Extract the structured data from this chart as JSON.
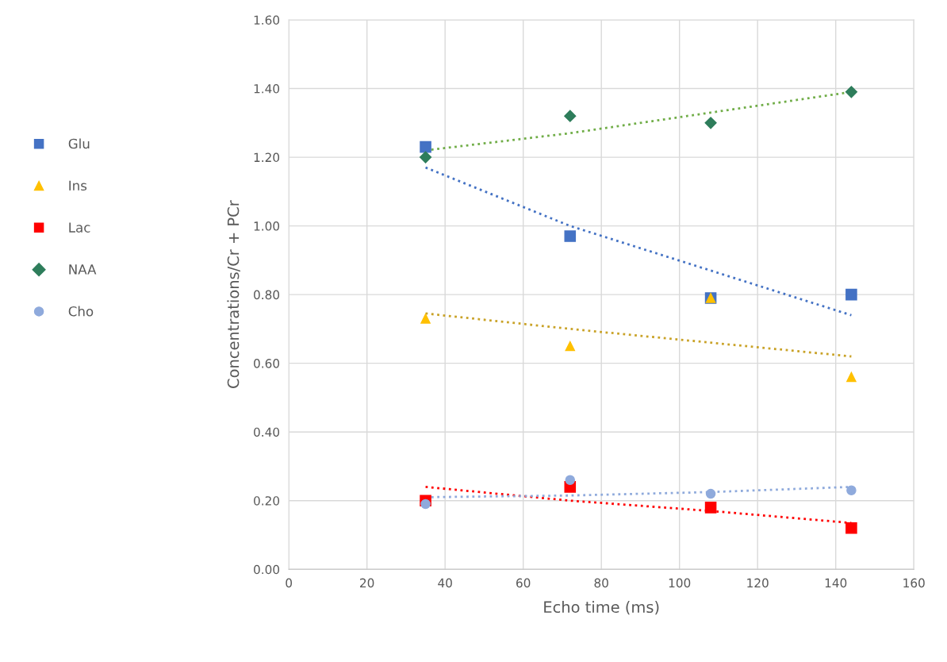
{
  "chart_data": {
    "type": "scatter",
    "xlabel": "Echo time (ms)",
    "ylabel": "Concentrations/Cr + PCr",
    "x": [
      35,
      72,
      108,
      144
    ],
    "series": [
      {
        "name": "Glu",
        "color": "#4472c4",
        "marker": "square",
        "values": [
          1.23,
          0.97,
          0.79,
          0.8
        ]
      },
      {
        "name": "Ins",
        "color": "#ffc000",
        "marker": "triangle",
        "values": [
          0.73,
          0.65,
          0.79,
          0.56
        ]
      },
      {
        "name": "Lac",
        "color": "#ff0000",
        "marker": "square",
        "values": [
          0.2,
          0.24,
          0.18,
          0.12
        ]
      },
      {
        "name": "NAA",
        "color": "#2e7d5b",
        "marker": "diamond",
        "values": [
          1.2,
          1.32,
          1.3,
          1.39
        ]
      },
      {
        "name": "Cho",
        "color": "#8faadc",
        "marker": "circle",
        "values": [
          0.19,
          0.26,
          0.22,
          0.23
        ]
      },
      {
        "type": "line",
        "color": "#4472c4",
        "line_style": "dotted",
        "x": [
          35,
          72,
          108,
          144
        ],
        "values": [
          1.17,
          1.0,
          0.87,
          0.74
        ]
      },
      {
        "type": "line",
        "color": "#c9a227",
        "line_style": "dotted",
        "x": [
          35,
          72,
          108,
          144
        ],
        "values": [
          0.745,
          0.7,
          0.66,
          0.62
        ]
      },
      {
        "type": "line",
        "color": "#ff0000",
        "line_style": "dotted",
        "x": [
          35,
          72,
          108,
          144
        ],
        "values": [
          0.24,
          0.2,
          0.17,
          0.135
        ]
      },
      {
        "type": "line",
        "color": "#70ad47",
        "line_style": "dotted",
        "x": [
          35,
          72,
          108,
          144
        ],
        "values": [
          1.22,
          1.27,
          1.33,
          1.39
        ]
      },
      {
        "type": "line",
        "color": "#8faadc",
        "line_style": "dotted",
        "x": [
          35,
          72,
          108,
          144
        ],
        "values": [
          0.21,
          0.215,
          0.225,
          0.24
        ]
      }
    ],
    "xlim": [
      0,
      160
    ],
    "xticks": [
      0,
      20,
      40,
      60,
      80,
      100,
      120,
      140,
      160
    ],
    "ylim": [
      0,
      1.6
    ],
    "yticks": [
      {
        "value": 0,
        "label": "0.00"
      },
      {
        "value": 0.2,
        "label": "0.20"
      },
      {
        "value": 0.4,
        "label": "0.40"
      },
      {
        "value": 0.6,
        "label": "0.60"
      },
      {
        "value": 0.8,
        "label": "0.80"
      },
      {
        "value": 1.0,
        "label": "1.00"
      },
      {
        "value": 1.2,
        "label": "1.20"
      },
      {
        "value": 1.4,
        "label": "1.40"
      },
      {
        "value": 1.6,
        "label": "1.60"
      }
    ],
    "grid": true,
    "legend": "left"
  }
}
